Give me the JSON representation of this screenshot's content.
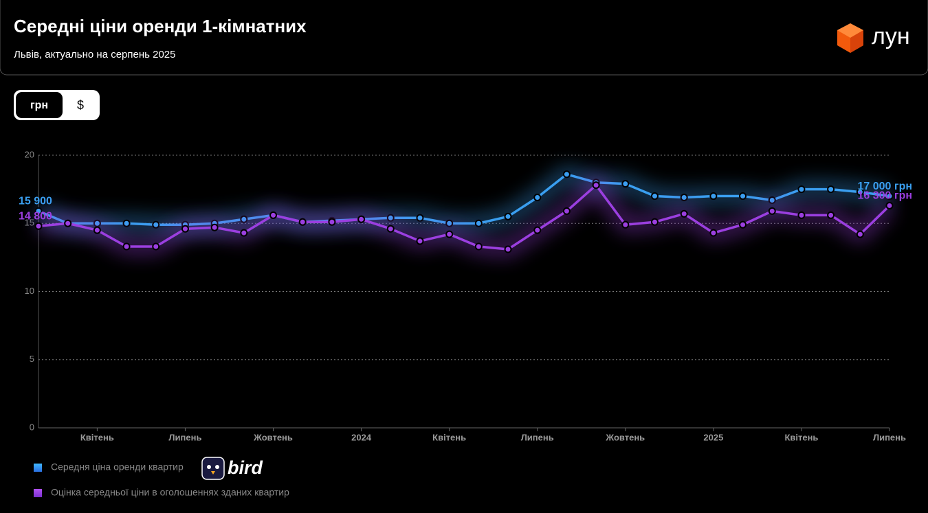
{
  "header": {
    "title": "Середні ціни оренди 1-кімнатних",
    "subtitle": "Львів, актуально на серпень 2025",
    "brand": "лун"
  },
  "toggle": [
    "грн",
    "$"
  ],
  "source_logo": "bird",
  "chart_data": {
    "type": "line",
    "categories": [
      null,
      null,
      "Квітень",
      null,
      null,
      "Липень",
      null,
      null,
      "Жовтень",
      null,
      null,
      "2024",
      null,
      null,
      "Квітень",
      null,
      null,
      "Липень",
      null,
      null,
      "Жовтень",
      null,
      null,
      "2025",
      null,
      null,
      "Квітень",
      null,
      null,
      "Липень"
    ],
    "series": [
      {
        "name": "Середня ціна оренди квартир",
        "color": "#3a9ff0",
        "values": [
          15.9,
          15.0,
          15.0,
          15.0,
          14.9,
          14.9,
          15.0,
          15.3,
          15.6,
          15.1,
          15.2,
          15.3,
          15.4,
          15.4,
          15.0,
          15.0,
          15.5,
          16.9,
          18.6,
          18.0,
          17.9,
          17.0,
          16.9,
          17.0,
          17.0,
          16.7,
          17.5,
          17.5,
          17.3,
          17.0
        ],
        "value_labels": [
          "15 900",
          null,
          null,
          null,
          null,
          null,
          null,
          null,
          null,
          null,
          null,
          null,
          null,
          null,
          null,
          null,
          null,
          null,
          null,
          null,
          null,
          null,
          null,
          null,
          null,
          null,
          null,
          null,
          null,
          "17 000 грн"
        ]
      },
      {
        "name": "Оцінка середньої ціни в оголошеннях зданих квартир",
        "color": "#9b3fe0",
        "values": [
          14.8,
          15.0,
          14.5,
          13.3,
          13.3,
          14.6,
          14.7,
          14.3,
          15.6,
          15.1,
          15.1,
          15.3,
          14.6,
          13.7,
          14.2,
          13.3,
          13.1,
          14.5,
          15.9,
          17.8,
          14.9,
          15.1,
          15.7,
          14.3,
          14.9,
          15.9,
          15.6,
          15.6,
          14.2,
          16.3
        ],
        "value_labels": [
          "14 800",
          null,
          null,
          null,
          null,
          null,
          null,
          null,
          null,
          null,
          null,
          null,
          null,
          null,
          null,
          null,
          null,
          null,
          null,
          null,
          null,
          null,
          null,
          null,
          null,
          null,
          null,
          null,
          null,
          "16 300 грн"
        ]
      }
    ],
    "ylim": [
      0,
      20
    ],
    "yticks": [
      0,
      5,
      10,
      15,
      20
    ],
    "grid": true
  }
}
